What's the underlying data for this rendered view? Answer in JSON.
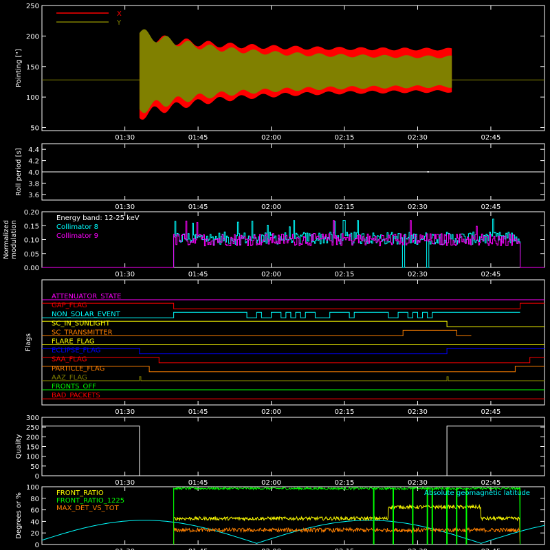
{
  "chart_data": {
    "type": "line",
    "x_ticks": [
      "01:30",
      "01:45",
      "02:00",
      "02:15",
      "02:30",
      "02:45"
    ],
    "panels": [
      {
        "id": "pointing",
        "ylabel": "Pointing [\"]",
        "ylim": [
          45,
          250
        ],
        "yticks": [
          50,
          100,
          150,
          200,
          250
        ],
        "legend": [
          {
            "name": "X",
            "color": "#ff0000"
          },
          {
            "name": "Y",
            "color": "#808000"
          }
        ],
        "baseline": 128,
        "x_band": [
          "01:33",
          "02:37"
        ],
        "envelope_x": {
          "start_upper": 200,
          "start_lower": 70,
          "end_upper": 178,
          "end_lower": 110
        },
        "envelope_y": {
          "start_upper": 205,
          "start_lower": 80,
          "end_upper": 165,
          "end_lower": 118
        }
      },
      {
        "id": "roll",
        "ylabel": "Roll period [s]",
        "ylim": [
          3.5,
          4.5
        ],
        "yticks": [
          "3.6",
          "3.8",
          "4.0",
          "4.2",
          "4.4"
        ],
        "value": 4.0
      },
      {
        "id": "modulation",
        "ylabel": "Normalized modulation",
        "ylim": [
          0,
          0.2
        ],
        "yticks": [
          "0.00",
          "0.05",
          "0.10",
          "0.15",
          "0.20"
        ],
        "legend_title": "Energy band: 12-25 keV",
        "series": [
          {
            "name": "Collimator 8",
            "color": "#00ffff",
            "mean": 0.105
          },
          {
            "name": "Collimator 9",
            "color": "#ff00ff",
            "mean": 0.1
          }
        ],
        "active": [
          "01:40",
          "02:51"
        ]
      },
      {
        "id": "flags",
        "ylabel": "Flags",
        "items": [
          {
            "name": "ATTENUATOR_STATE",
            "color": "#ff00ff",
            "segments": [
              [
                "01:13",
                "02:56",
                0
              ]
            ]
          },
          {
            "name": "GAP_FLAG",
            "color": "#ff0000",
            "segments": [
              [
                "01:13",
                "01:40",
                1
              ],
              [
                "01:40",
                "02:51",
                0
              ],
              [
                "02:51",
                "02:56",
                1
              ]
            ]
          },
          {
            "name": "NON_SOLAR_EVENT",
            "color": "#00ffff",
            "segments": [
              [
                "01:13",
                "01:40",
                0
              ],
              [
                "01:40",
                "02:51",
                1
              ]
            ]
          },
          {
            "name": "SC_IN_SUNLIGHT",
            "color": "#ffff00",
            "segments": [
              [
                "01:13",
                "02:36",
                1
              ],
              [
                "02:36",
                "02:56",
                0
              ]
            ]
          },
          {
            "name": "SC_TRANSMITTER",
            "color": "#ff8000",
            "segments": [
              [
                "01:13",
                "02:27",
                0
              ],
              [
                "02:27",
                "02:38",
                1
              ],
              [
                "02:38",
                "02:41",
                0
              ]
            ]
          },
          {
            "name": "FLARE_FLAG",
            "color": "#ffff00",
            "segments": [
              [
                "01:13",
                "02:56",
                0
              ]
            ]
          },
          {
            "name": "ECLIPSE_FLAG",
            "color": "#0000ff",
            "segments": [
              [
                "01:13",
                "01:33",
                1
              ],
              [
                "01:33",
                "02:36",
                0
              ],
              [
                "02:36",
                "02:56",
                1
              ]
            ]
          },
          {
            "name": "SAA_FLAG",
            "color": "#ff0000",
            "segments": [
              [
                "01:13",
                "01:37",
                1
              ],
              [
                "01:37",
                "02:53",
                0
              ],
              [
                "02:53",
                "02:56",
                1
              ]
            ]
          },
          {
            "name": "PARTICLE_FLAG",
            "color": "#ff8000",
            "segments": [
              [
                "01:13",
                "01:35",
                1
              ],
              [
                "01:35",
                "02:50",
                0
              ],
              [
                "02:50",
                "02:56",
                1
              ]
            ]
          },
          {
            "name": "AAZ_FLAG",
            "color": "#808000",
            "segments": [
              [
                "01:13",
                "02:56",
                0
              ]
            ]
          },
          {
            "name": "FRONTS_OFF",
            "color": "#00ff00",
            "segments": [
              [
                "01:13",
                "02:56",
                0
              ]
            ]
          },
          {
            "name": "BAD_PACKETS",
            "color": "#ff0000",
            "segments": [
              [
                "01:13",
                "02:56",
                0
              ]
            ]
          }
        ]
      },
      {
        "id": "quality",
        "ylabel": "Quality",
        "ylim": [
          0,
          300
        ],
        "yticks": [
          0,
          50,
          100,
          150,
          200,
          250,
          300
        ],
        "segments": [
          [
            "01:13",
            "01:33",
            255
          ],
          [
            "01:33",
            "02:36",
            0
          ],
          [
            "02:36",
            "02:56",
            255
          ]
        ]
      },
      {
        "id": "ratios",
        "ylabel": "Degrees or %",
        "ylim": [
          0,
          100
        ],
        "yticks": [
          0,
          20,
          40,
          60,
          80,
          100
        ],
        "annotation": "Absolute geomagnetic latitude",
        "annotation_color": "#00ffff",
        "series": [
          {
            "name": "FRONT_RATIO",
            "color": "#ffff00"
          },
          {
            "name": "FRONT_RATIO_1225",
            "color": "#00ff00"
          },
          {
            "name": "MAX_DET_VS_TOT",
            "color": "#ff8000"
          }
        ]
      }
    ]
  }
}
